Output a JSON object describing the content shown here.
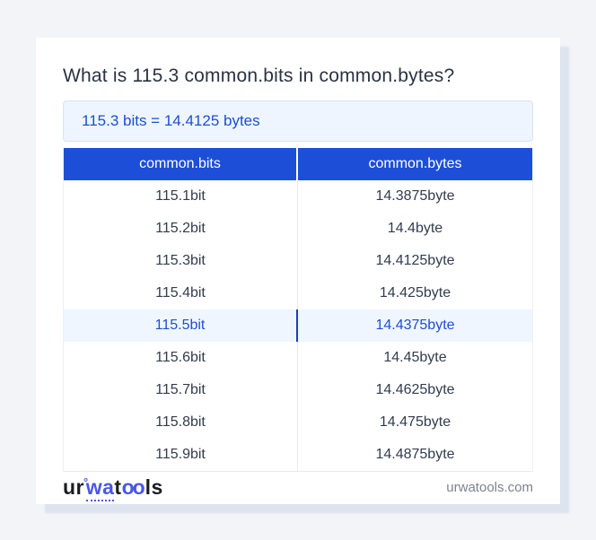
{
  "title": "What is 115.3 common.bits in common.bytes?",
  "result": "115.3 bits = 14.4125 bytes",
  "table": {
    "headers": [
      "common.bits",
      "common.bytes"
    ],
    "rows": [
      [
        "115.1bit",
        "14.3875byte"
      ],
      [
        "115.2bit",
        "14.4byte"
      ],
      [
        "115.3bit",
        "14.4125byte"
      ],
      [
        "115.4bit",
        "14.425byte"
      ],
      [
        "115.5bit",
        "14.4375byte"
      ],
      [
        "115.6bit",
        "14.45byte"
      ],
      [
        "115.7bit",
        "14.4625byte"
      ],
      [
        "115.8bit",
        "14.475byte"
      ],
      [
        "115.9bit",
        "14.4875byte"
      ]
    ],
    "highlighted_row_index": 4
  },
  "footer": {
    "logo": {
      "ur": "ur",
      "ring": "°",
      "wa": "wa",
      "t": "t",
      "oo": "oo",
      "ls": "ls"
    },
    "site": "urwatools.com"
  },
  "colors": {
    "page_bg": "#f2f4f8",
    "card_shadow": "#dde3ef",
    "accent_blue": "#1d4ed8",
    "highlight_bg": "#eff6ff",
    "highlight_text": "#1d4ed8",
    "highlight_divider": "#1e40af",
    "result_bg": "#eef5fe",
    "result_border": "#d6e4f6",
    "result_text": "#1c4fd1",
    "logo_blue": "#4a57e8",
    "title_color": "#2a3342",
    "cell_color": "#323c4e",
    "muted": "#7b8391"
  }
}
